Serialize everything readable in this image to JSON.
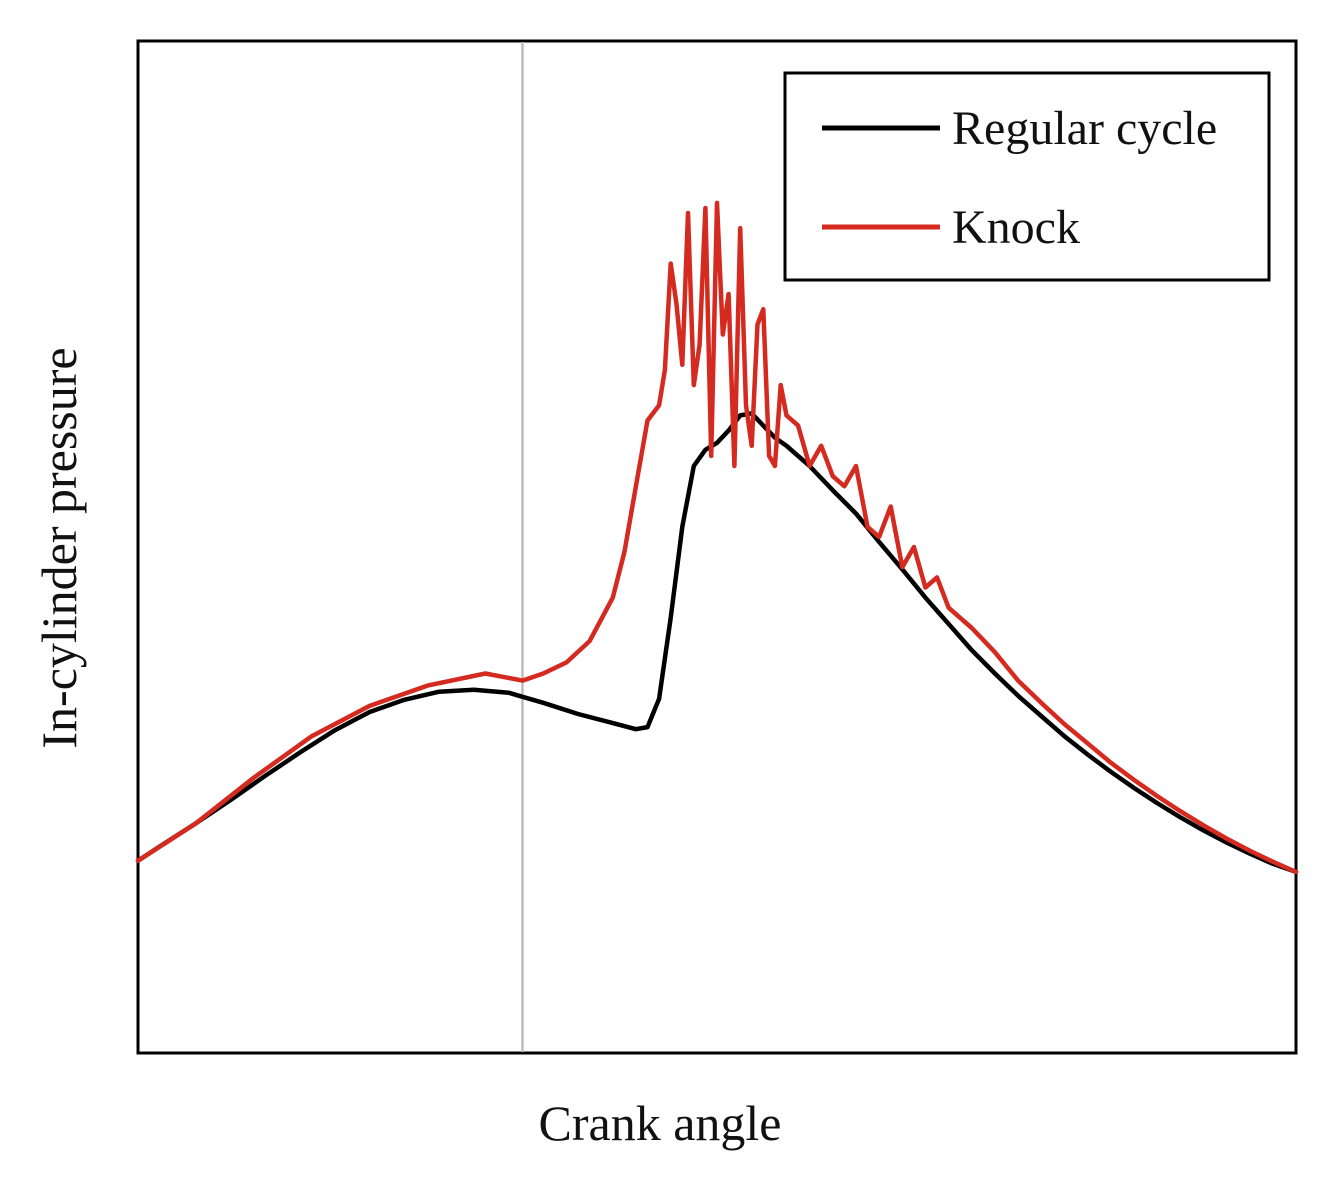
{
  "chart_data": {
    "type": "line",
    "title": "",
    "xlabel": "Crank angle",
    "ylabel": "In-cylinder pressure",
    "xlim": [
      0,
      100
    ],
    "ylim": [
      0,
      100
    ],
    "grid": false,
    "legend_position": "top-right",
    "reference_line": {
      "x": 33.2,
      "color": "#bdbdbd"
    },
    "series": [
      {
        "name": "Regular cycle",
        "color": "#000000",
        "x": [
          0,
          2,
          5,
          8,
          11,
          14,
          17,
          20,
          23,
          26,
          29,
          32,
          33.2,
          35,
          38,
          41,
          43,
          44,
          45,
          46,
          47,
          48,
          49,
          50,
          51,
          52,
          53,
          54,
          55,
          56,
          58,
          60,
          62,
          64,
          66,
          68,
          70,
          72,
          74,
          76,
          78,
          80,
          82,
          84,
          86,
          88,
          90,
          92,
          94,
          96,
          98,
          100
        ],
        "values": [
          19,
          20.5,
          22.7,
          25,
          27.4,
          29.7,
          31.9,
          33.7,
          34.9,
          35.7,
          35.9,
          35.6,
          35.2,
          34.6,
          33.5,
          32.6,
          32,
          32.2,
          35,
          43,
          52,
          58,
          59.6,
          60.3,
          61.5,
          63,
          63.2,
          62,
          60.8,
          60,
          58,
          55.6,
          53.3,
          50.5,
          47.8,
          45,
          42.4,
          39.8,
          37.5,
          35.3,
          33.3,
          31.3,
          29.5,
          27.8,
          26.2,
          24.7,
          23.3,
          22,
          20.8,
          19.7,
          18.7,
          17.9
        ]
      },
      {
        "name": "Knock",
        "color": "#d42a20",
        "x": [
          0,
          5,
          10,
          15,
          20,
          25,
          30,
          33.2,
          35,
          37,
          39,
          41,
          42,
          43,
          44,
          45,
          45.5,
          46,
          46.5,
          47,
          47.5,
          48,
          48.5,
          49,
          49.5,
          50,
          50.5,
          51,
          51.5,
          52,
          52.5,
          53,
          53.5,
          54,
          54.5,
          55,
          55.5,
          56,
          57,
          58,
          59,
          60,
          61,
          62,
          63,
          64,
          65,
          66,
          67,
          68,
          69,
          70,
          72,
          74,
          76,
          78,
          80,
          82,
          84,
          86,
          88,
          90,
          92,
          94,
          96,
          98,
          100
        ],
        "values": [
          19,
          22.7,
          27.2,
          31.3,
          34.3,
          36.3,
          37.5,
          36.8,
          37.5,
          38.6,
          40.7,
          45,
          49.5,
          56,
          62.5,
          64,
          67.5,
          78,
          74,
          68,
          83,
          66,
          70,
          83.5,
          59,
          84,
          71,
          75,
          58,
          81.5,
          64,
          60,
          72,
          73.5,
          59,
          58,
          66,
          63,
          62,
          58,
          60,
          57,
          56,
          58,
          52,
          51,
          54,
          48,
          50,
          46,
          47,
          44,
          42,
          39.6,
          36.8,
          34.6,
          32.5,
          30.6,
          28.7,
          27,
          25.4,
          23.9,
          22.5,
          21.2,
          20,
          18.9,
          17.9
        ]
      }
    ]
  }
}
